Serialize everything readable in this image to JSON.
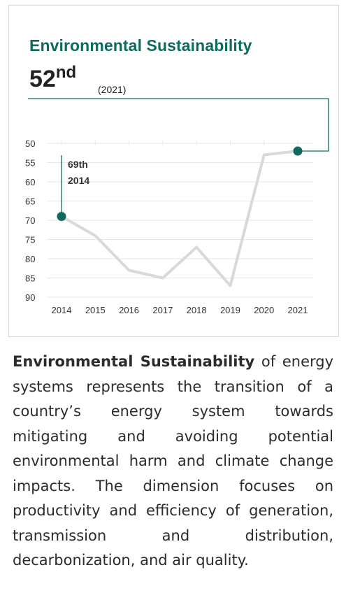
{
  "card": {
    "title": "Environmental Sustainability",
    "rank_number": "52",
    "rank_suffix": "nd",
    "rank_year": "(2021)"
  },
  "chart_data": {
    "type": "line",
    "x": [
      "2014",
      "2015",
      "2016",
      "2017",
      "2018",
      "2019",
      "2020",
      "2021"
    ],
    "series": [
      {
        "values": [
          69,
          74,
          83,
          85,
          77,
          87,
          53,
          52
        ]
      }
    ],
    "y_ticks": [
      50,
      55,
      60,
      65,
      70,
      75,
      80,
      85,
      90
    ],
    "ylim": [
      50,
      90
    ],
    "y_inverted": true,
    "grid": true,
    "annotations": [
      {
        "x": "2014",
        "line1": "69th",
        "line2": "2014"
      }
    ],
    "highlight_points": [
      "2014",
      "2021"
    ],
    "colors": {
      "line": "#d9d9d9",
      "marker": "#0e6a5d",
      "grid": "#e6e6e6",
      "connector": "#0e6a5d",
      "axis_text": "#333333"
    }
  },
  "description": {
    "bold": "Environmental Sustainability",
    "rest": " of energy systems represents the transition of a country’s energy system towards mitigating and avoiding potential environmental harm and climate change impacts. The dimension focuses on productivity and efficiency of generation, transmission and distribution, decarbonization, and air quality."
  }
}
